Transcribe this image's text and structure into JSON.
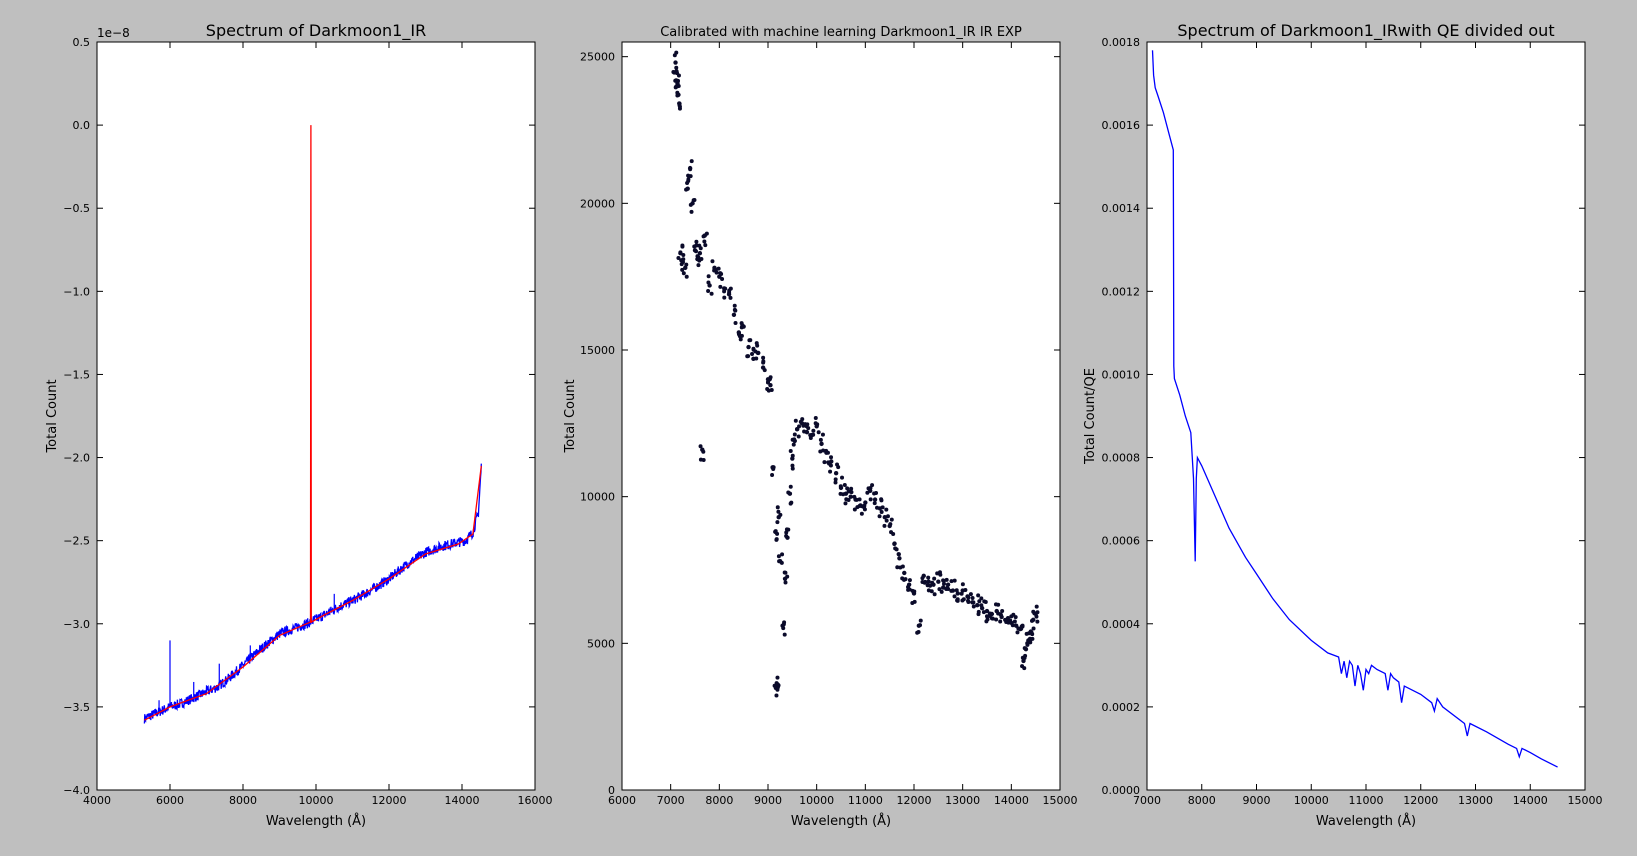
{
  "figure": {
    "background": "#bfbfbf"
  },
  "chart_data": [
    {
      "type": "line",
      "title": "Spectrum of Darkmoon1_IR",
      "xlabel": "Wavelength (Å)",
      "ylabel": "Total Count",
      "offset_text": "1e−8",
      "xlim": [
        4000,
        16000
      ],
      "ylim": [
        -4.0,
        0.5
      ],
      "xticks": [
        4000,
        6000,
        8000,
        10000,
        12000,
        14000,
        16000
      ],
      "yticks": [
        -4.0,
        -3.5,
        -3.0,
        -2.5,
        -2.0,
        -1.5,
        -1.0,
        -0.5,
        0.0,
        0.5
      ],
      "ytick_labels": [
        "−4.0",
        "−3.5",
        "−3.0",
        "−2.5",
        "−2.0",
        "−1.5",
        "−1.0",
        "−0.5",
        "0.0",
        "0.5"
      ],
      "grid": false,
      "series": [
        {
          "color": "#0000ff",
          "noise": 0.03,
          "x": [
            5300,
            5500,
            5800,
            6000,
            6300,
            6600,
            7000,
            7300,
            7600,
            8000,
            8500,
            9000,
            9500,
            9850,
            10200,
            10600,
            11000,
            11500,
            12000,
            12500,
            13000,
            13500,
            13900,
            14100,
            14300,
            14450,
            14530
          ],
          "y": [
            -3.57,
            -3.55,
            -3.52,
            -3.5,
            -3.48,
            -3.45,
            -3.41,
            -3.38,
            -3.33,
            -3.25,
            -3.15,
            -3.06,
            -3.02,
            -2.99,
            -2.95,
            -2.9,
            -2.86,
            -2.8,
            -2.73,
            -2.64,
            -2.57,
            -2.53,
            -2.51,
            -2.5,
            -2.45,
            -2.33,
            -2.05
          ],
          "spikes": [
            {
              "x": 6000,
              "y": -3.1
            },
            {
              "x": 5700,
              "y": -3.46
            },
            {
              "x": 6650,
              "y": -3.35
            },
            {
              "x": 7000,
              "y": -3.37
            },
            {
              "x": 7350,
              "y": -3.24
            },
            {
              "x": 8200,
              "y": -3.13
            },
            {
              "x": 10500,
              "y": -2.82
            }
          ]
        },
        {
          "color": "#ff0000",
          "x": [
            5300,
            6000,
            7000,
            8000,
            9000,
            9850,
            9860,
            9870,
            10200,
            11000,
            12000,
            13000,
            13900,
            14300,
            14530
          ],
          "y": [
            -3.58,
            -3.5,
            -3.42,
            -3.26,
            -3.07,
            -2.99,
            0.0,
            -2.99,
            -2.95,
            -2.86,
            -2.73,
            -2.58,
            -2.52,
            -2.46,
            -2.05
          ]
        }
      ]
    },
    {
      "type": "scatter",
      "title": "Calibrated with machine learning Darkmoon1_IR IR EXP",
      "xlabel": "Wavelength (Å)",
      "ylabel": "Total Count",
      "xlim": [
        6000,
        15000
      ],
      "ylim": [
        0,
        25500
      ],
      "xticks": [
        6000,
        7000,
        8000,
        9000,
        10000,
        11000,
        12000,
        13000,
        14000,
        15000
      ],
      "yticks": [
        0,
        5000,
        10000,
        15000,
        20000,
        25000
      ],
      "grid": false,
      "marker_color": "#0b0b2a",
      "series": [
        {
          "x": [
            7100,
            7120,
            7140,
            7160,
            7180,
            7200,
            7250,
            7300,
            7350,
            7400,
            7450,
            7500,
            7550,
            7600,
            7650,
            7700,
            7800,
            7900,
            8000,
            8100,
            8200,
            8300,
            8400,
            8500,
            8600,
            8700,
            8800,
            8900,
            9000,
            9050,
            9100,
            9150,
            9180,
            9200,
            9220,
            9250,
            9300,
            9350,
            9400,
            9450,
            9500,
            9550,
            9600,
            9700,
            9800,
            9900,
            10000,
            10100,
            10200,
            10300,
            10400,
            10500,
            10600,
            10700,
            10800,
            10900,
            11000,
            11100,
            11200,
            11300,
            11400,
            11500,
            11600,
            11700,
            11800,
            11900,
            12000,
            12100,
            12200,
            12300,
            12400,
            12500,
            12600,
            12700,
            12800,
            12900,
            13000,
            13100,
            13200,
            13300,
            13400,
            13500,
            13600,
            13700,
            13800,
            13900,
            14000,
            14100,
            14200,
            14250,
            14300,
            14350,
            14400,
            14450,
            14500
          ],
          "y": [
            24800,
            24500,
            24100,
            23700,
            23400,
            18300,
            18000,
            17800,
            20500,
            21200,
            20000,
            18400,
            18100,
            18300,
            11600,
            18900,
            17200,
            17800,
            17500,
            17100,
            16900,
            16200,
            15600,
            15800,
            15100,
            14700,
            14900,
            14400,
            14000,
            13800,
            11000,
            8800,
            3600,
            3500,
            9300,
            7800,
            5600,
            7200,
            8600,
            10100,
            11300,
            11900,
            12300,
            12500,
            12200,
            12100,
            12400,
            11800,
            11500,
            11200,
            10800,
            10300,
            10100,
            10000,
            9900,
            9700,
            9800,
            10200,
            9900,
            9600,
            9300,
            9000,
            8400,
            7900,
            7400,
            7000,
            6700,
            5600,
            7300,
            7100,
            7000,
            7100,
            6900,
            7000,
            6800,
            6700,
            6800,
            6600,
            6400,
            6300,
            6200,
            6100,
            6000,
            6100,
            5900,
            5800,
            5700,
            5600,
            5500,
            4400,
            4800,
            5100,
            5400,
            5800,
            6000
          ]
        }
      ]
    },
    {
      "type": "line",
      "title": "Spectrum of Darkmoon1_IRwith QE divided out",
      "xlabel": "Wavelength (Å)",
      "ylabel": "Total Count/QE",
      "xlim": [
        7000,
        15000
      ],
      "ylim": [
        0,
        0.0018
      ],
      "xticks": [
        7000,
        8000,
        9000,
        10000,
        11000,
        12000,
        13000,
        14000,
        15000
      ],
      "yticks": [
        0.0,
        0.0002,
        0.0004,
        0.0006,
        0.0008,
        0.001,
        0.0012,
        0.0014,
        0.0016,
        0.0018
      ],
      "ytick_labels": [
        "0.0000",
        "0.0002",
        "0.0004",
        "0.0006",
        "0.0008",
        "0.0010",
        "0.0012",
        "0.0014",
        "0.0016",
        "0.0018"
      ],
      "grid": false,
      "series": [
        {
          "color": "#0000ff",
          "x": [
            7100,
            7120,
            7150,
            7200,
            7300,
            7400,
            7480,
            7490,
            7500,
            7600,
            7700,
            7800,
            7850,
            7880,
            7900,
            7920,
            8000,
            8200,
            8500,
            8800,
            9000,
            9300,
            9600,
            10000,
            10300,
            10500,
            10550,
            10600,
            10650,
            10700,
            10750,
            10800,
            10850,
            10900,
            10950,
            11000,
            11050,
            11100,
            11200,
            11350,
            11400,
            11450,
            11500,
            11600,
            11650,
            11700,
            12000,
            12200,
            12250,
            12300,
            12400,
            12800,
            12850,
            12900,
            13200,
            13600,
            13750,
            13800,
            13850,
            14000,
            14200,
            14500
          ],
          "y": [
            0.00178,
            0.00172,
            0.00169,
            0.00167,
            0.00163,
            0.00158,
            0.00154,
            0.00102,
            0.00099,
            0.00095,
            0.0009,
            0.00086,
            0.00075,
            0.00055,
            0.00075,
            0.0008,
            0.00078,
            0.00072,
            0.00063,
            0.00056,
            0.00052,
            0.00046,
            0.00041,
            0.00036,
            0.00033,
            0.00032,
            0.00028,
            0.00031,
            0.00027,
            0.00031,
            0.0003,
            0.00025,
            0.0003,
            0.00028,
            0.00024,
            0.00029,
            0.00028,
            0.0003,
            0.00029,
            0.00028,
            0.00024,
            0.00028,
            0.00027,
            0.00026,
            0.00021,
            0.00025,
            0.00023,
            0.00021,
            0.00019,
            0.00022,
            0.0002,
            0.00016,
            0.00013,
            0.00016,
            0.00014,
            0.00011,
            0.0001,
            8e-05,
            0.0001,
            9e-05,
            7.5e-05,
            5.5e-05
          ]
        }
      ]
    }
  ]
}
